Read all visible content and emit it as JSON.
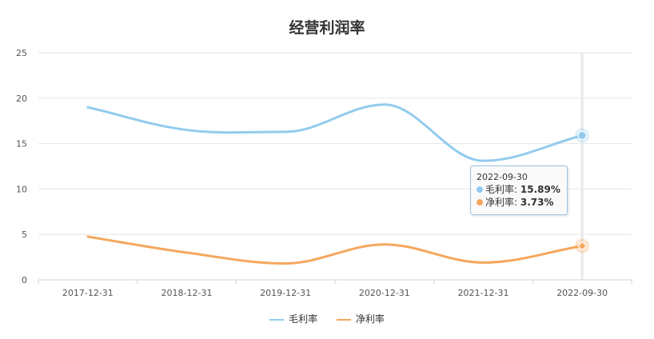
{
  "chart_data": {
    "type": "line",
    "title": "经营利润率",
    "categories": [
      "2017-12-31",
      "2018-12-31",
      "2019-12-31",
      "2020-12-31",
      "2021-12-31",
      "2022-09-30"
    ],
    "ylim": [
      0,
      25
    ],
    "yticks": [
      0,
      5,
      10,
      15,
      20,
      25
    ],
    "grid": true,
    "legend": "bottom",
    "series": [
      {
        "name": "毛利率",
        "color": "#93cbee",
        "values": [
          19.0,
          16.5,
          16.3,
          19.3,
          13.1,
          15.89
        ]
      },
      {
        "name": "净利率",
        "color": "#f5a75e",
        "values": [
          4.75,
          3.0,
          1.8,
          3.9,
          1.9,
          3.73
        ]
      }
    ],
    "tooltip": {
      "date": "2022-09-30",
      "rows": [
        {
          "label": "毛利率",
          "value": "15.89%",
          "color": "#93cbee"
        },
        {
          "label": "净利率",
          "value": "3.73%",
          "color": "#f5a75e"
        }
      ]
    }
  }
}
